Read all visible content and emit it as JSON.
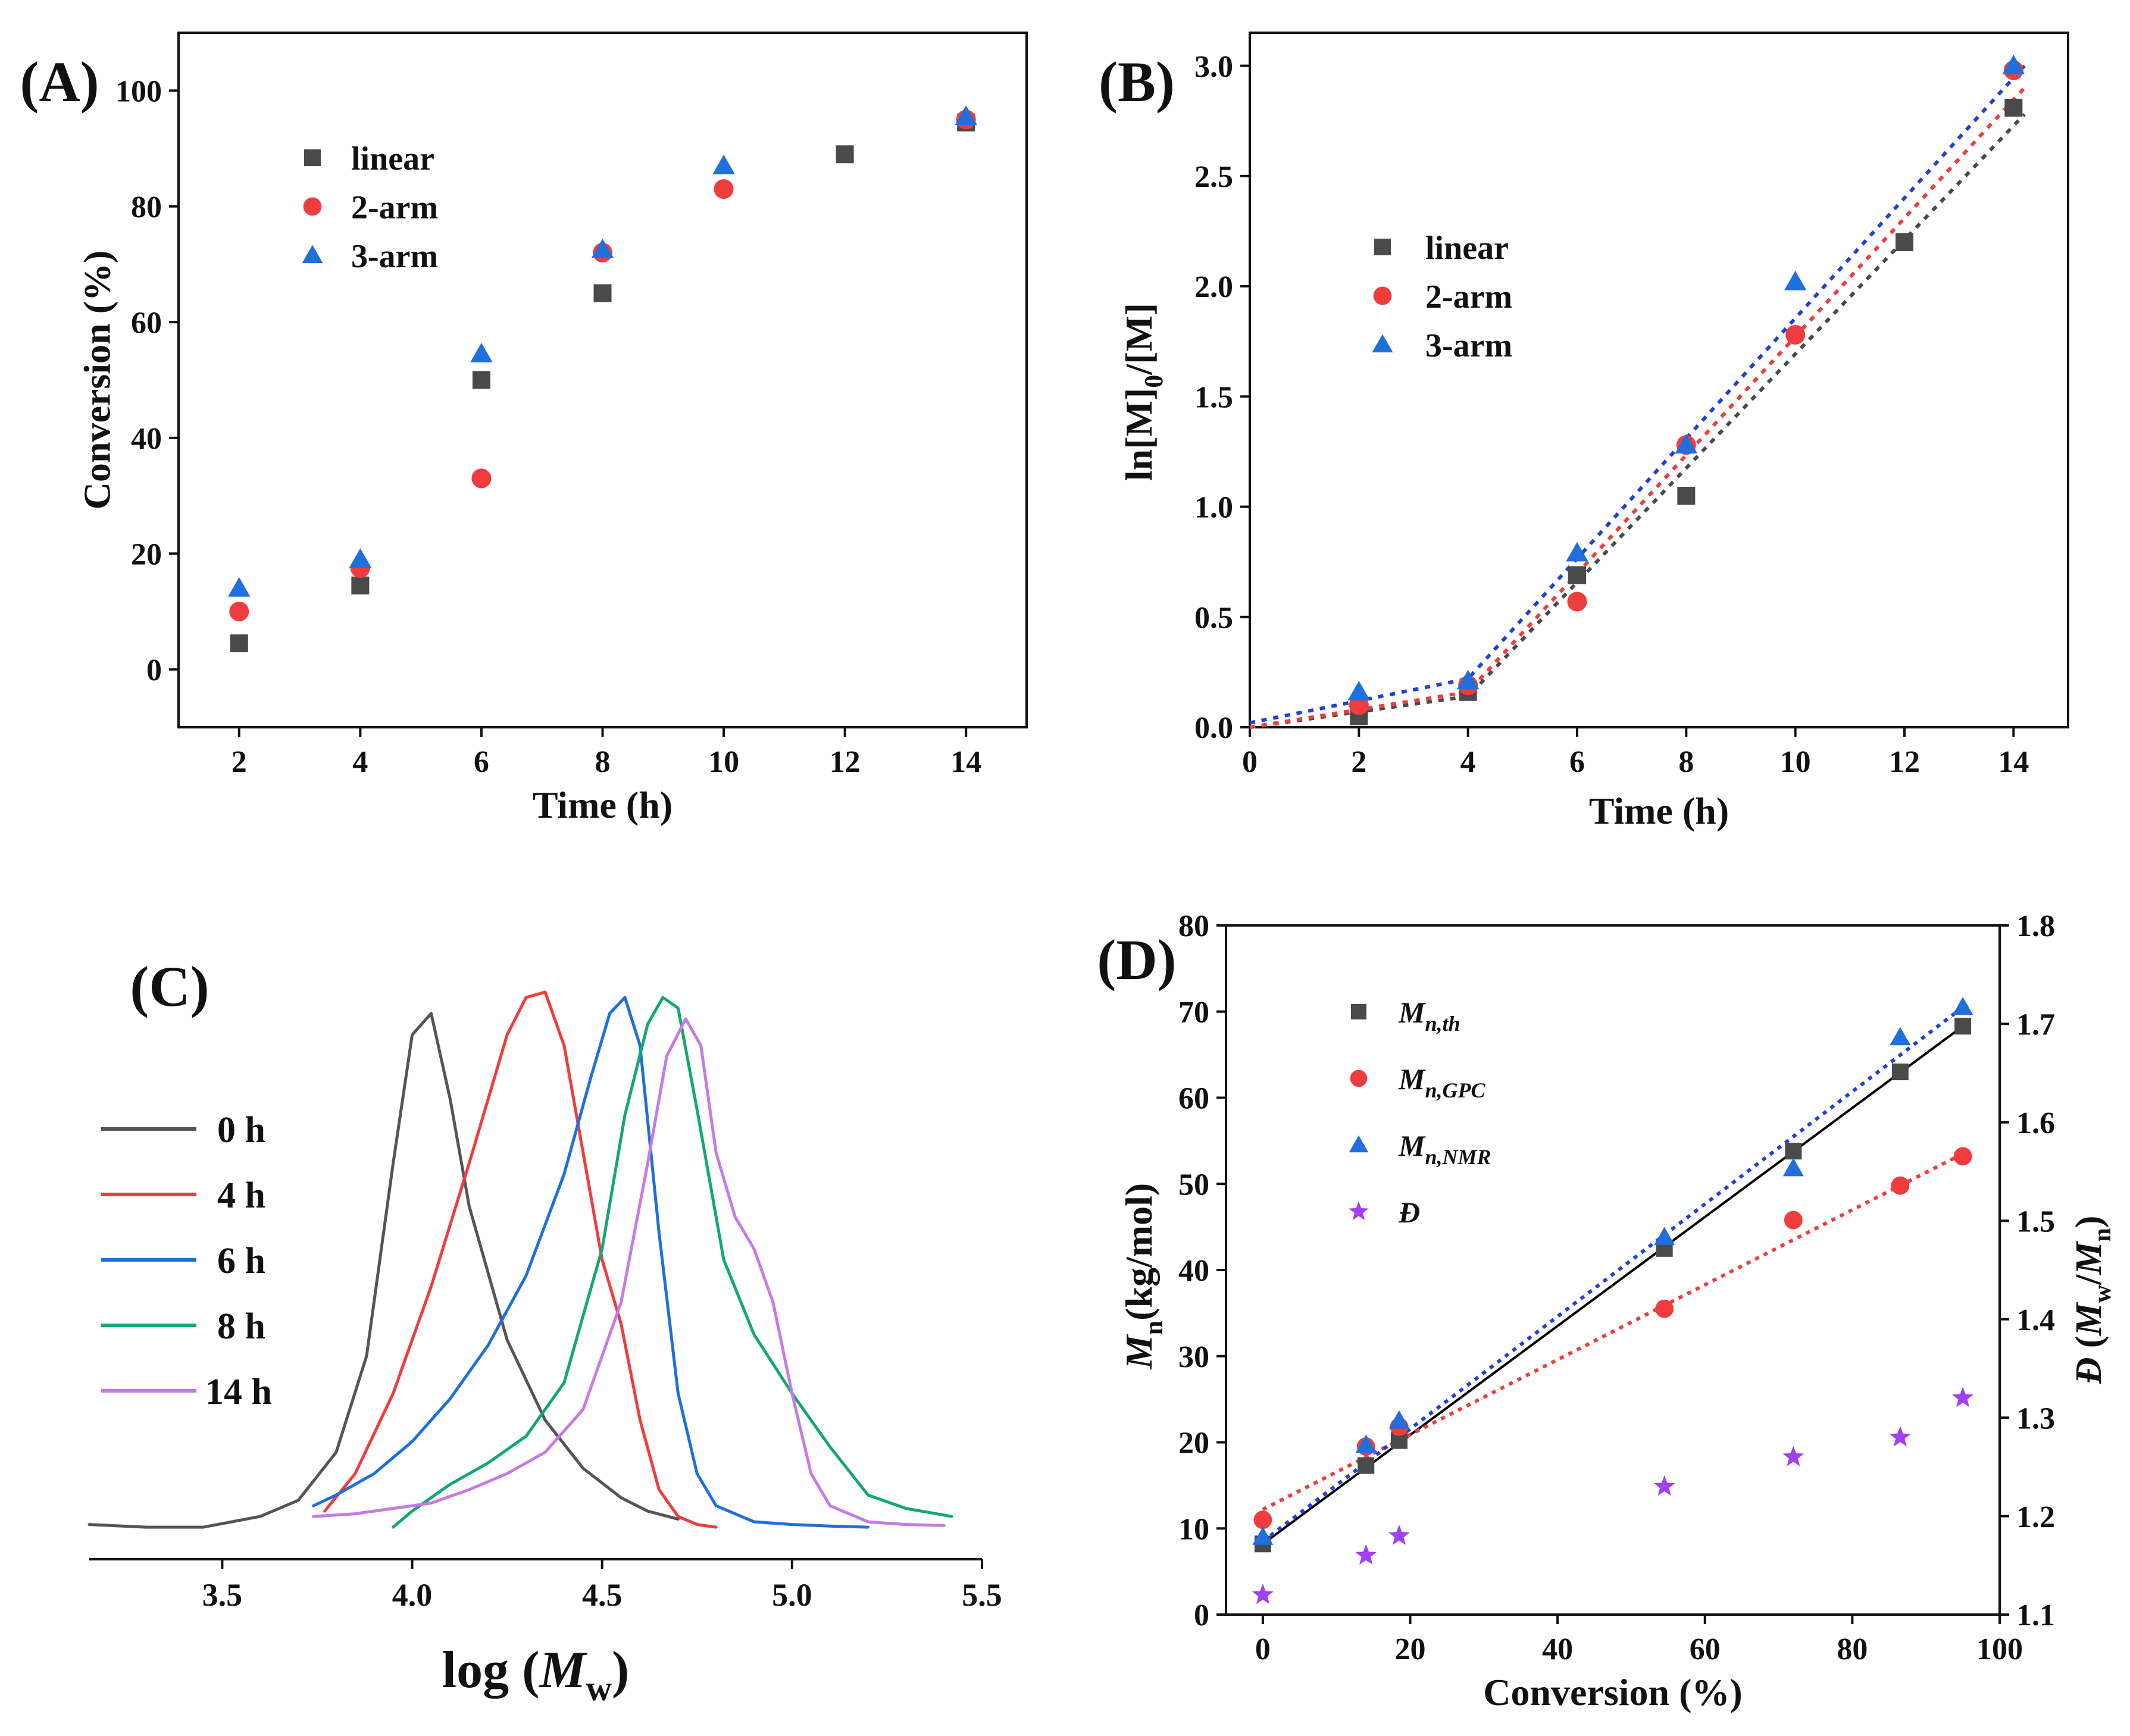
{
  "colors": {
    "linear": "#4a4a4a",
    "arm2": "#f03c3c",
    "arm3": "#1f6fdc",
    "dispersity": "#a040f0",
    "fit_black": "#000000",
    "fit_red": "#f03c3c",
    "fit_blue": "#1f3fe0",
    "h0": "#555555",
    "h4": "#f03c3c",
    "h6": "#1f6fdc",
    "h8": "#13a870",
    "h14": "#c77ae6"
  },
  "chart_data": [
    {
      "id": "A",
      "panel_label": "(A)",
      "type": "scatter",
      "title": "",
      "xlabel": "Time (h)",
      "ylabel": "Conversion (%)",
      "xlim": [
        1,
        15
      ],
      "ylim": [
        -10,
        110
      ],
      "xticks": [
        2,
        4,
        6,
        8,
        10,
        12,
        14
      ],
      "yticks": [
        0,
        20,
        40,
        60,
        80,
        100
      ],
      "grid": false,
      "legend_position": "top-left",
      "series": [
        {
          "name": "linear",
          "marker": "square",
          "color_key": "linear",
          "x": [
            2,
            4,
            6,
            8,
            12,
            14
          ],
          "y": [
            4.5,
            14.5,
            50,
            65,
            89,
            94.5
          ]
        },
        {
          "name": "2-arm",
          "marker": "circle",
          "color_key": "arm2",
          "x": [
            2,
            4,
            6,
            8,
            10,
            14
          ],
          "y": [
            10,
            17.5,
            33,
            72,
            83,
            95
          ]
        },
        {
          "name": "3-arm",
          "marker": "triangle",
          "color_key": "arm3",
          "x": [
            2,
            4,
            6,
            8,
            10,
            14
          ],
          "y": [
            14,
            19,
            54.5,
            72.5,
            87,
            95.5
          ]
        }
      ]
    },
    {
      "id": "B",
      "panel_label": "(B)",
      "type": "scatter",
      "title": "",
      "xlabel": "Time (h)",
      "ylabel": "ln[M]0/[M]",
      "ylabel_main": "ln[M]",
      "ylabel_sub": "0",
      "ylabel_tail": "/[M]",
      "xlim": [
        0,
        15
      ],
      "ylim": [
        0,
        3.15
      ],
      "xticks": [
        0,
        2,
        4,
        6,
        8,
        10,
        12,
        14
      ],
      "yticks": [
        0.0,
        0.5,
        1.0,
        1.5,
        2.0,
        2.5,
        3.0
      ],
      "ytick_labels": [
        "0.0",
        "0.5",
        "1.0",
        "1.5",
        "2.0",
        "2.5",
        "3.0"
      ],
      "grid": false,
      "legend_position": "center-left",
      "series": [
        {
          "name": "linear",
          "marker": "square",
          "color_key": "linear",
          "x": [
            2,
            4,
            6,
            8,
            12,
            14
          ],
          "y": [
            0.05,
            0.16,
            0.69,
            1.05,
            2.2,
            2.81
          ]
        },
        {
          "name": "2-arm",
          "marker": "circle",
          "color_key": "arm2",
          "x": [
            2,
            4,
            6,
            8,
            10,
            14
          ],
          "y": [
            0.1,
            0.19,
            0.57,
            1.28,
            1.78,
            2.98
          ]
        },
        {
          "name": "3-arm",
          "marker": "triangle",
          "color_key": "arm3",
          "x": [
            2,
            4,
            6,
            8,
            10,
            14
          ],
          "y": [
            0.16,
            0.21,
            0.79,
            1.28,
            2.02,
            3.0
          ]
        }
      ],
      "fit_lines": [
        {
          "name": "linear fit",
          "color_key": "linear",
          "x": [
            0,
            4,
            14.2
          ],
          "y": [
            0.0,
            0.14,
            2.78
          ]
        },
        {
          "name": "2-arm fit",
          "color_key": "arm2",
          "x": [
            0,
            4,
            14.2
          ],
          "y": [
            0.0,
            0.16,
            2.9
          ]
        },
        {
          "name": "3-arm fit",
          "color_key": "fit_blue",
          "x": [
            0,
            4,
            14.2
          ],
          "y": [
            0.02,
            0.22,
            3.0
          ]
        }
      ]
    },
    {
      "id": "C",
      "panel_label": "(C)",
      "type": "line",
      "title": "",
      "xlabel": "log (Mw)",
      "xlabel_main": "log (",
      "xlabel_var": "M",
      "xlabel_sub": "w",
      "xlabel_tail": ")",
      "ylabel": "",
      "xlim": [
        3.15,
        5.5
      ],
      "ylim": [
        -0.06,
        1.03
      ],
      "xticks": [
        3.5,
        4.0,
        4.5,
        5.0,
        5.5
      ],
      "xtick_labels": [
        "3.5",
        "4.0",
        "4.5",
        "5.0",
        "5.5"
      ],
      "grid": false,
      "legend_position": "center-left",
      "series": [
        {
          "name": "0 h",
          "color_key": "h0",
          "x": [
            3.15,
            3.3,
            3.45,
            3.6,
            3.7,
            3.8,
            3.88,
            3.95,
            4.0,
            4.05,
            4.1,
            4.15,
            4.25,
            4.35,
            4.45,
            4.55,
            4.62,
            4.7
          ],
          "y": [
            0.005,
            0.0,
            0.0,
            0.02,
            0.05,
            0.14,
            0.32,
            0.68,
            0.92,
            0.96,
            0.8,
            0.6,
            0.35,
            0.2,
            0.11,
            0.055,
            0.03,
            0.015
          ]
        },
        {
          "name": "4 h",
          "color_key": "h4",
          "x": [
            3.77,
            3.85,
            3.95,
            4.05,
            4.15,
            4.25,
            4.3,
            4.35,
            4.4,
            4.45,
            4.5,
            4.55,
            4.6,
            4.65,
            4.7,
            4.75,
            4.8
          ],
          "y": [
            0.03,
            0.1,
            0.25,
            0.45,
            0.68,
            0.92,
            0.99,
            1.0,
            0.9,
            0.7,
            0.5,
            0.38,
            0.2,
            0.07,
            0.02,
            0.005,
            0.0
          ]
        },
        {
          "name": "6 h",
          "color_key": "h6",
          "x": [
            3.74,
            3.8,
            3.9,
            4.0,
            4.1,
            4.2,
            4.3,
            4.4,
            4.47,
            4.52,
            4.56,
            4.6,
            4.65,
            4.7,
            4.75,
            4.8,
            4.9,
            5.0,
            5.1,
            5.2
          ],
          "y": [
            0.04,
            0.06,
            0.1,
            0.16,
            0.24,
            0.34,
            0.47,
            0.66,
            0.84,
            0.96,
            0.99,
            0.9,
            0.55,
            0.25,
            0.1,
            0.04,
            0.01,
            0.005,
            0.002,
            0.0
          ]
        },
        {
          "name": "8 h",
          "color_key": "h8",
          "x": [
            3.95,
            4.0,
            4.1,
            4.2,
            4.3,
            4.4,
            4.5,
            4.56,
            4.62,
            4.66,
            4.7,
            4.75,
            4.82,
            4.9,
            5.0,
            5.1,
            5.2,
            5.3,
            5.42
          ],
          "y": [
            0.0,
            0.03,
            0.08,
            0.12,
            0.17,
            0.27,
            0.52,
            0.77,
            0.94,
            0.99,
            0.97,
            0.78,
            0.5,
            0.36,
            0.25,
            0.15,
            0.06,
            0.035,
            0.02
          ]
        },
        {
          "name": "14 h",
          "color_key": "h14",
          "x": [
            3.74,
            3.85,
            3.95,
            4.05,
            4.15,
            4.25,
            4.35,
            4.45,
            4.55,
            4.62,
            4.67,
            4.72,
            4.76,
            4.8,
            4.85,
            4.9,
            4.95,
            5.0,
            5.05,
            5.1,
            5.2,
            5.3,
            5.4
          ],
          "y": [
            0.02,
            0.025,
            0.035,
            0.045,
            0.07,
            0.1,
            0.14,
            0.22,
            0.42,
            0.68,
            0.88,
            0.95,
            0.9,
            0.7,
            0.58,
            0.52,
            0.42,
            0.25,
            0.1,
            0.04,
            0.01,
            0.005,
            0.003
          ]
        }
      ]
    },
    {
      "id": "D",
      "panel_label": "(D)",
      "type": "scatter",
      "title": "",
      "xlabel": "Conversion (%)",
      "ylabel": "Mn(kg/mol)",
      "ylabel_var": "M",
      "ylabel_sub": "n",
      "ylabel_tail": "(kg/mol)",
      "ylabel_right": "Đ (Mw/Mn)",
      "ylabel_right_d": "Đ",
      "ylabel_right_open": " (",
      "ylabel_right_m1": "M",
      "ylabel_right_s1": "w",
      "ylabel_right_slash": "/",
      "ylabel_right_m2": "M",
      "ylabel_right_s2": "n",
      "ylabel_right_close": ")",
      "xlim": [
        -5,
        100
      ],
      "ylim": [
        0,
        80
      ],
      "ylim_right": [
        1.1,
        1.8
      ],
      "xticks": [
        0,
        20,
        40,
        60,
        80,
        100
      ],
      "yticks": [
        0,
        10,
        20,
        30,
        40,
        50,
        60,
        70,
        80
      ],
      "yticks_right": [
        1.1,
        1.2,
        1.3,
        1.4,
        1.5,
        1.6,
        1.7,
        1.8
      ],
      "ytick_labels_right": [
        "1.1",
        "1.2",
        "1.3",
        "1.4",
        "1.5",
        "1.6",
        "1.7",
        "1.8"
      ],
      "grid": false,
      "legend_position": "top-left",
      "legend": [
        {
          "main": "M",
          "sub": "n,th",
          "color_key": "linear",
          "marker": "square"
        },
        {
          "main": "M",
          "sub": "n,GPC",
          "color_key": "arm2",
          "marker": "circle"
        },
        {
          "main": "M",
          "sub": "n,NMR",
          "color_key": "arm3",
          "marker": "triangle"
        },
        {
          "main": "Đ",
          "sub": "",
          "color_key": "dispersity",
          "marker": "star"
        }
      ],
      "series": [
        {
          "name": "Mn,th",
          "marker": "square",
          "color_key": "linear",
          "axis": "left",
          "x": [
            0,
            14,
            18.5,
            54.5,
            72,
            86.5,
            95
          ],
          "y": [
            8.2,
            17.3,
            20.2,
            42.5,
            53.8,
            63,
            68.3
          ]
        },
        {
          "name": "Mn,GPC",
          "marker": "circle",
          "color_key": "arm2",
          "axis": "left",
          "x": [
            0,
            14,
            18.5,
            54.5,
            72,
            86.5,
            95
          ],
          "y": [
            11,
            19.5,
            21.8,
            35.5,
            45.8,
            49.8,
            53.2
          ]
        },
        {
          "name": "Mn,NMR",
          "marker": "triangle",
          "color_key": "arm3",
          "axis": "left",
          "x": [
            0,
            14,
            18.5,
            54.5,
            72,
            86.5,
            95
          ],
          "y": [
            9,
            19.7,
            22.5,
            43.8,
            51.8,
            67,
            70.5
          ]
        },
        {
          "name": "Đ",
          "marker": "star",
          "color_key": "dispersity",
          "axis": "right",
          "x": [
            0,
            14,
            18.5,
            54.5,
            72,
            86.5,
            95
          ],
          "y": [
            1.12,
            1.16,
            1.18,
            1.23,
            1.26,
            1.28,
            1.32
          ]
        }
      ],
      "fit_lines": [
        {
          "name": "Mn,th fit",
          "color_key": "fit_black",
          "style": "solid",
          "x": [
            0,
            95
          ],
          "y": [
            8.2,
            68.3
          ]
        },
        {
          "name": "Mn,GPC fit",
          "color_key": "fit_red",
          "style": "dotted",
          "x": [
            0,
            95
          ],
          "y": [
            12.2,
            53.5
          ]
        },
        {
          "name": "Mn,NMR fit",
          "color_key": "fit_blue",
          "style": "dotted",
          "x": [
            0,
            95
          ],
          "y": [
            8.5,
            70.5
          ]
        }
      ]
    }
  ]
}
